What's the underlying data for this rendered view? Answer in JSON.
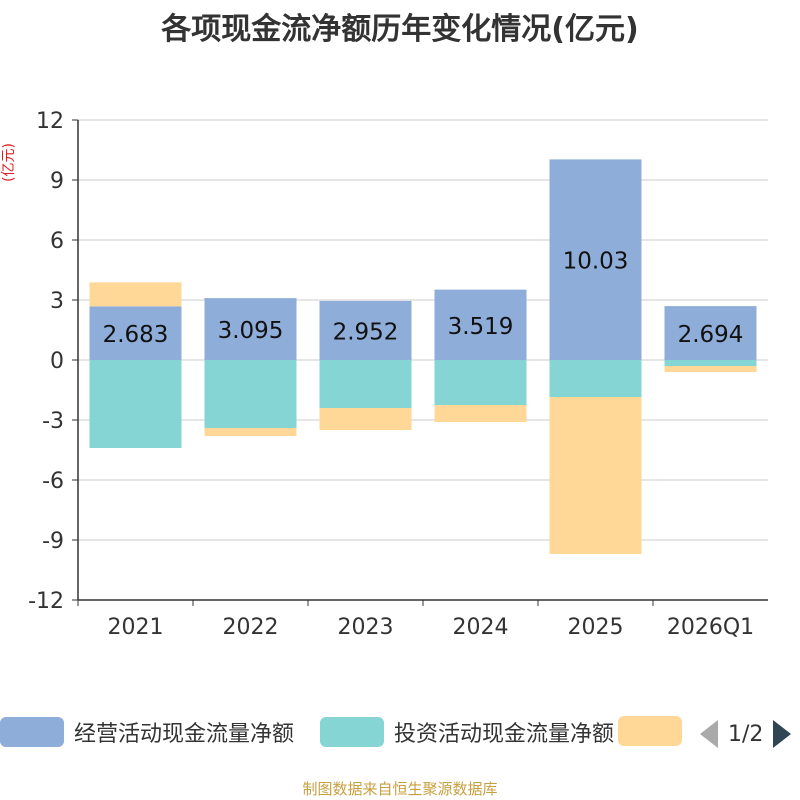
{
  "chart_data": {
    "type": "bar",
    "stacked": true,
    "title": "各项现金流净额历年变化情况(亿元)",
    "ylabel": "(亿元)",
    "xlabel": "",
    "ylim": [
      -12,
      12
    ],
    "yticks": [
      12,
      9,
      6,
      3,
      0,
      -3,
      -6,
      -9,
      -12
    ],
    "categories": [
      "2021",
      "2022",
      "2023",
      "2024",
      "2025",
      "2026Q1"
    ],
    "series": [
      {
        "name": "经营活动现金流量净额",
        "color": "#8eadd8",
        "values": [
          2.683,
          3.095,
          2.952,
          3.519,
          10.03,
          2.694
        ],
        "labels": [
          "2.683",
          "3.095",
          "2.952",
          "3.519",
          "10.03",
          "2.694"
        ]
      },
      {
        "name": "投资活动现金流量净额",
        "color": "#85d5d5",
        "values": [
          -4.4,
          -3.4,
          -2.4,
          -2.25,
          -1.85,
          -0.3
        ]
      },
      {
        "name": "",
        "color": "#ffd898",
        "values": [
          1.2,
          -0.4,
          -1.1,
          -0.85,
          -7.85,
          -0.3
        ]
      }
    ],
    "grid": true,
    "legend_position": "bottom"
  },
  "legend": {
    "page_text": "1/2"
  },
  "source": "制图数据来自恒生聚源数据库"
}
